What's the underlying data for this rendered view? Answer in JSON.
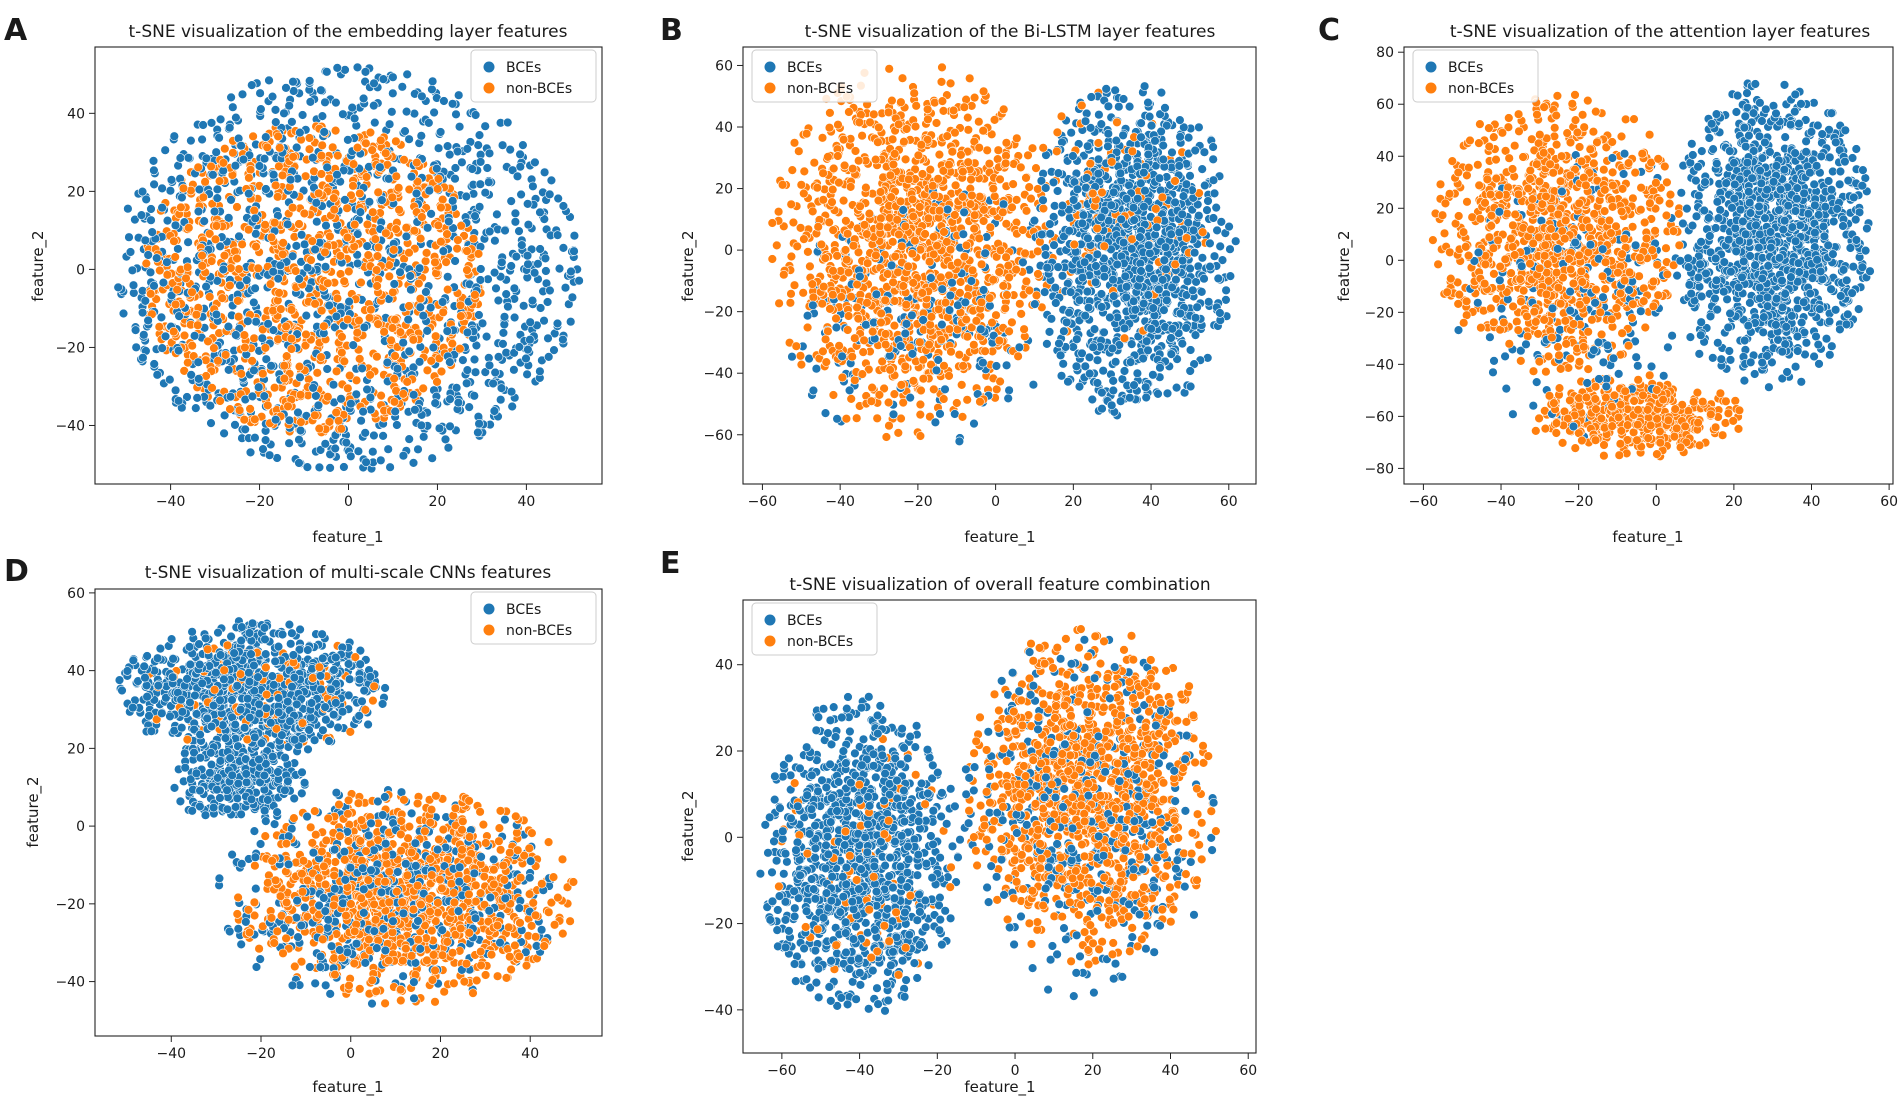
{
  "colors": {
    "BCEs": "#1f77b4",
    "non-BCEs": "#ff7f0e"
  },
  "chart_data": [
    {
      "panel": "A",
      "type": "scatter",
      "title": "t-SNE visualization of the embedding layer features",
      "xlabel": "feature_1",
      "ylabel": "feature_2",
      "xlim": [
        -57,
        57
      ],
      "ylim": [
        -55,
        57
      ],
      "xticks": [
        -40,
        -20,
        0,
        20,
        40
      ],
      "yticks": [
        -40,
        -20,
        0,
        20,
        40
      ],
      "legend": [
        "BCEs",
        "non-BCEs"
      ],
      "legend_position": "top-right",
      "series": [
        {
          "name": "BCEs",
          "shape": "disc",
          "cx": 0,
          "cy": 0,
          "rx": 52,
          "ry": 52,
          "n": 1300,
          "seed": 11
        },
        {
          "name": "non-BCEs",
          "shape": "disc",
          "cx": -8,
          "cy": -2,
          "rx": 38,
          "ry": 40,
          "n": 1100,
          "seed": 12
        }
      ]
    },
    {
      "panel": "B",
      "type": "scatter",
      "title": "t-SNE visualization of the Bi-LSTM layer features",
      "xlabel": "feature_1",
      "ylabel": "feature_2",
      "xlim": [
        -65,
        67
      ],
      "ylim": [
        -76,
        66
      ],
      "xticks": [
        -60,
        -40,
        -20,
        0,
        20,
        40,
        60
      ],
      "yticks": [
        -60,
        -40,
        -20,
        0,
        20,
        40,
        60
      ],
      "legend": [
        "BCEs",
        "non-BCEs"
      ],
      "legend_position": "top-left",
      "series": [
        {
          "name": "BCEs",
          "shape": "blob",
          "cx": 35,
          "cy": 0,
          "rx": 27,
          "ry": 55,
          "n": 1200,
          "seed": 21
        },
        {
          "name": "BCEs",
          "shape": "blob",
          "cx": -20,
          "cy": -20,
          "rx": 35,
          "ry": 45,
          "n": 220,
          "seed": 22
        },
        {
          "name": "non-BCEs",
          "shape": "blob",
          "cx": -22,
          "cy": 0,
          "rx": 36,
          "ry": 62,
          "n": 1300,
          "seed": 23
        },
        {
          "name": "non-BCEs",
          "shape": "blob",
          "cx": 25,
          "cy": 10,
          "rx": 30,
          "ry": 45,
          "n": 120,
          "seed": 24
        }
      ]
    },
    {
      "panel": "C",
      "type": "scatter",
      "title": "t-SNE visualization of the attention layer features",
      "xlabel": "feature_1",
      "ylabel": "feature_2",
      "xlim": [
        -65,
        61
      ],
      "ylim": [
        -86,
        82
      ],
      "xticks": [
        -60,
        -40,
        -20,
        0,
        20,
        40,
        60
      ],
      "yticks": [
        -80,
        -60,
        -40,
        -20,
        0,
        20,
        40,
        60,
        80
      ],
      "legend": [
        "BCEs",
        "non-BCEs"
      ],
      "legend_position": "top-left",
      "series": [
        {
          "name": "BCEs",
          "shape": "blob",
          "cx": 30,
          "cy": 10,
          "rx": 26,
          "ry": 60,
          "n": 1200,
          "seed": 31
        },
        {
          "name": "BCEs",
          "shape": "blob",
          "cx": -20,
          "cy": -10,
          "rx": 35,
          "ry": 60,
          "n": 200,
          "seed": 32
        },
        {
          "name": "non-BCEs",
          "shape": "blob",
          "cx": -25,
          "cy": 10,
          "rx": 33,
          "ry": 55,
          "n": 1000,
          "seed": 33
        },
        {
          "name": "non-BCEs",
          "shape": "blob",
          "cx": -5,
          "cy": -60,
          "rx": 28,
          "ry": 16,
          "n": 400,
          "seed": 34
        }
      ]
    },
    {
      "panel": "D",
      "type": "scatter",
      "title": "t-SNE visualization of multi-scale CNNs features",
      "xlabel": "feature_1",
      "ylabel": "feature_2",
      "xlim": [
        -57,
        56
      ],
      "ylim": [
        -54,
        61
      ],
      "xticks": [
        -40,
        -20,
        0,
        20,
        40
      ],
      "yticks": [
        -40,
        -20,
        0,
        20,
        40,
        60
      ],
      "legend": [
        "BCEs",
        "non-BCEs"
      ],
      "legend_position": "top-right",
      "series": [
        {
          "name": "BCEs",
          "shape": "blob",
          "cx": -22,
          "cy": 35,
          "rx": 30,
          "ry": 18,
          "n": 900,
          "seed": 41
        },
        {
          "name": "BCEs",
          "shape": "blob",
          "cx": -25,
          "cy": 12,
          "rx": 15,
          "ry": 12,
          "n": 300,
          "seed": 42
        },
        {
          "name": "BCEs",
          "shape": "blob",
          "cx": 8,
          "cy": -18,
          "rx": 40,
          "ry": 28,
          "n": 500,
          "seed": 43
        },
        {
          "name": "non-BCEs",
          "shape": "blob",
          "cx": 12,
          "cy": -18,
          "rx": 38,
          "ry": 28,
          "n": 1100,
          "seed": 44
        },
        {
          "name": "non-BCEs",
          "shape": "blob",
          "cx": -20,
          "cy": 35,
          "rx": 28,
          "ry": 16,
          "n": 90,
          "seed": 45
        }
      ]
    },
    {
      "panel": "E",
      "type": "scatter",
      "title": "t-SNE visualization of overall feature combination",
      "xlabel": "feature_1",
      "ylabel": "feature_2",
      "xlim": [
        -70,
        62
      ],
      "ylim": [
        -50,
        55
      ],
      "xticks": [
        -60,
        -40,
        -20,
        0,
        20,
        40,
        60
      ],
      "yticks": [
        -40,
        -20,
        0,
        20,
        40
      ],
      "legend": [
        "BCEs",
        "non-BCEs"
      ],
      "legend_position": "top-left",
      "series": [
        {
          "name": "BCEs",
          "shape": "blob",
          "cx": -40,
          "cy": -5,
          "rx": 26,
          "ry": 38,
          "n": 1100,
          "seed": 51
        },
        {
          "name": "BCEs",
          "shape": "blob",
          "cx": 18,
          "cy": 5,
          "rx": 34,
          "ry": 42,
          "n": 400,
          "seed": 52
        },
        {
          "name": "non-BCEs",
          "shape": "blob",
          "cx": 20,
          "cy": 10,
          "rx": 33,
          "ry": 40,
          "n": 1100,
          "seed": 53
        },
        {
          "name": "non-BCEs",
          "shape": "blob",
          "cx": -40,
          "cy": -5,
          "rx": 24,
          "ry": 34,
          "n": 80,
          "seed": 54
        }
      ]
    }
  ]
}
